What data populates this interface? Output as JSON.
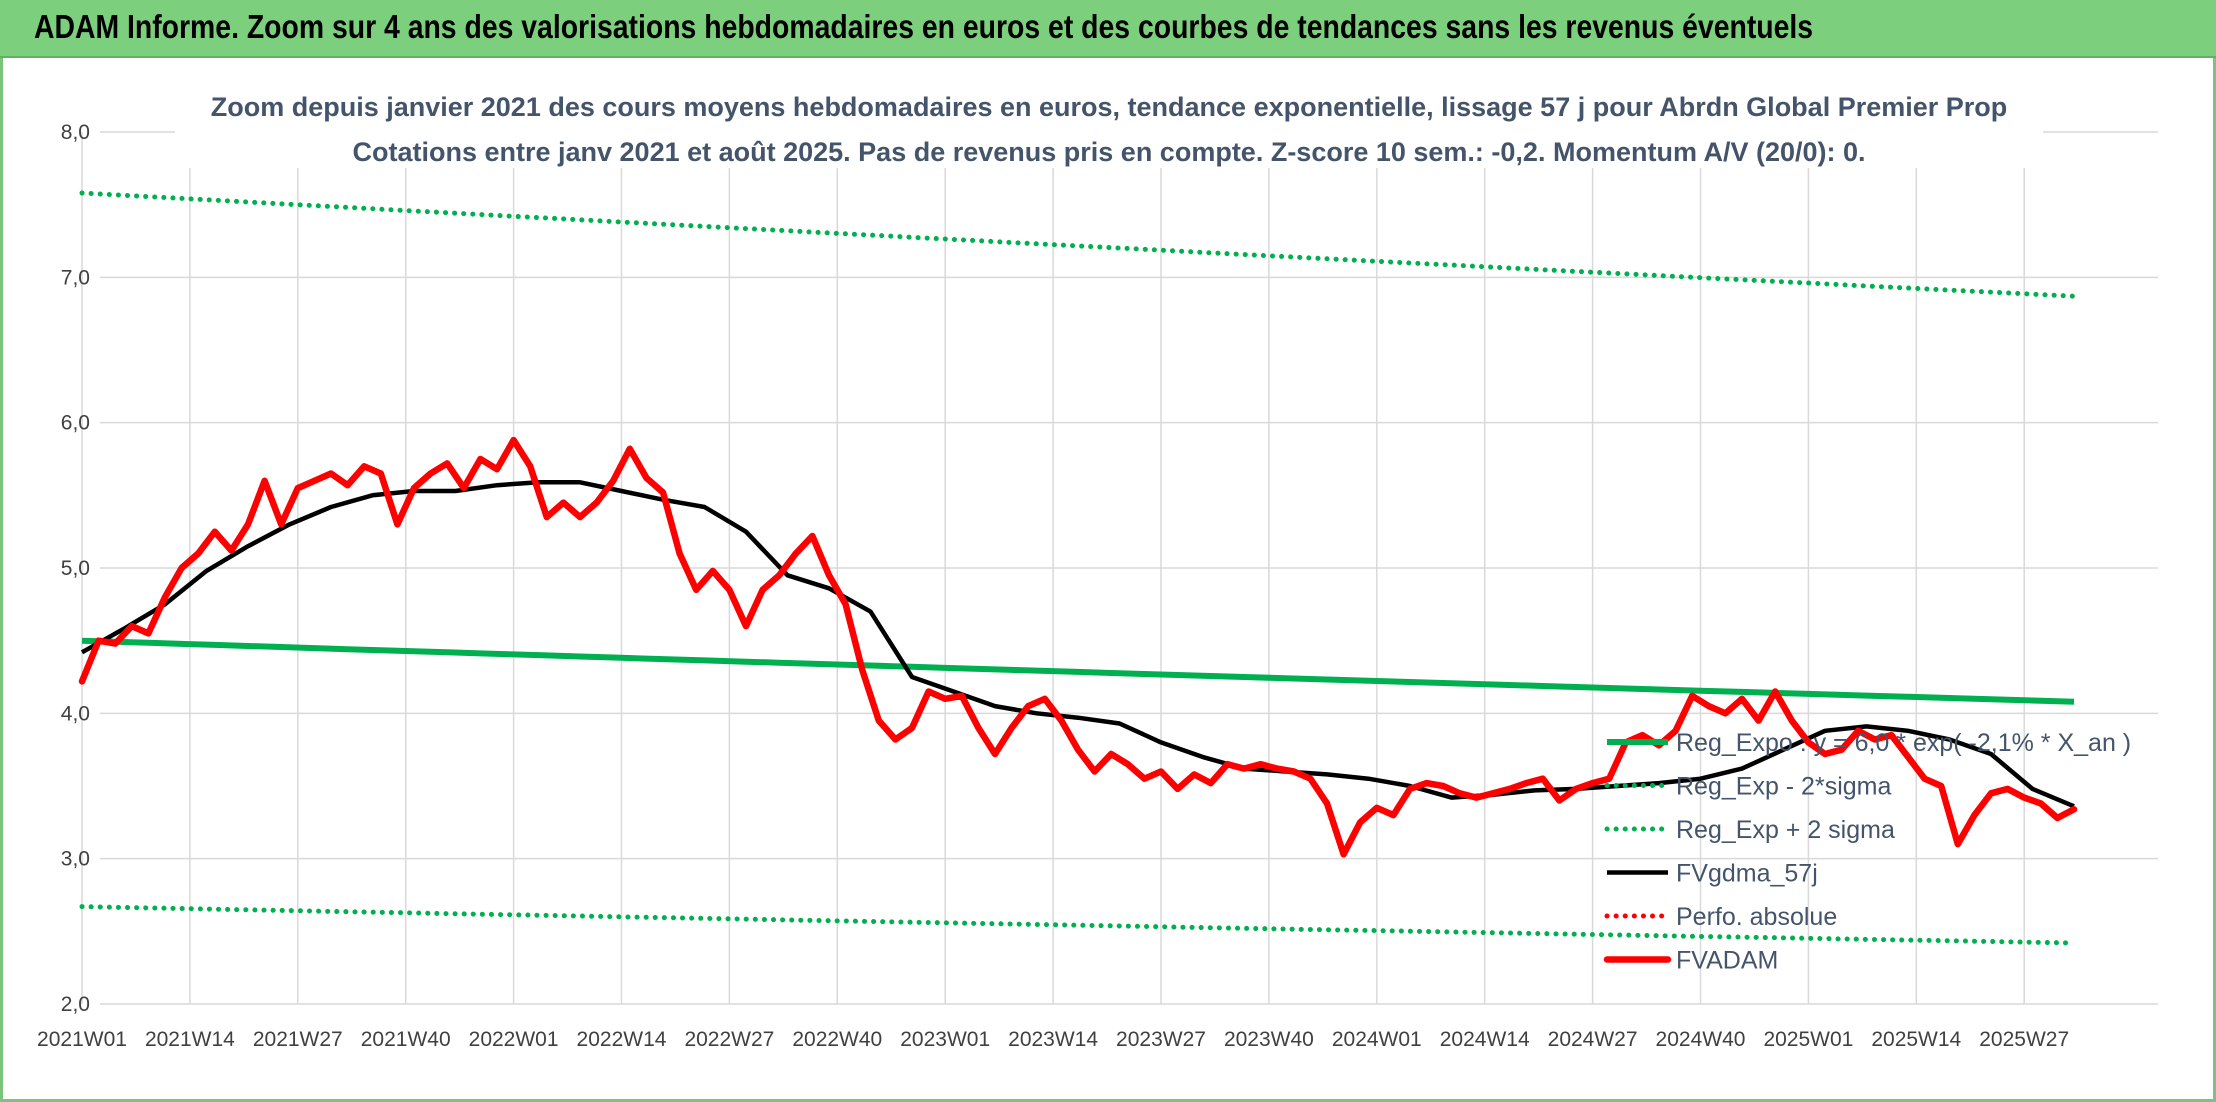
{
  "banner": {
    "title": "ADAM Informe. Zoom sur 4 ans des valorisations hebdomadaires en euros et des courbes de tendances sans les revenus éventuels"
  },
  "chart_data": {
    "type": "line",
    "title": "Zoom depuis janvier 2021 des cours moyens hebdomadaires en euros, tendance exponentielle, lissage 57 j pour Abrdn Global Premier Prop",
    "subtitle": "Cotations entre janv 2021 et août 2025. Pas de revenus pris en compte. Z-score 10 sem.: -0,2. Momentum A/V (20/0): 0.",
    "xlabel": "",
    "ylabel": "",
    "ylim": [
      2.0,
      8.0
    ],
    "y_ticks": [
      "2,0",
      "3,0",
      "4,0",
      "5,0",
      "6,0",
      "7,0",
      "8,0"
    ],
    "x_ticks": [
      "2021W01",
      "2021W14",
      "2021W27",
      "2021W40",
      "2022W01",
      "2022W14",
      "2022W27",
      "2022W40",
      "2023W01",
      "2023W14",
      "2023W27",
      "2023W40",
      "2024W01",
      "2024W14",
      "2024W27",
      "2024W40",
      "2025W01",
      "2025W14",
      "2025W27"
    ],
    "x_range_weeks": [
      0,
      240
    ],
    "grid": true,
    "legend_position": "right",
    "series": [
      {
        "name": "Reg_Expo : y = 6,0 * exp( -2,1% *  X_an )",
        "color": "#00b050",
        "style": "solid",
        "x": [
          0,
          240
        ],
        "values": [
          4.5,
          4.08
        ]
      },
      {
        "name": "Reg_Exp - 2*sigma",
        "color": "#00b050",
        "style": "dotted",
        "x": [
          0,
          240
        ],
        "values": [
          2.67,
          2.42
        ]
      },
      {
        "name": "Reg_Exp + 2 sigma",
        "color": "#00b050",
        "style": "dotted",
        "x": [
          0,
          240
        ],
        "values": [
          7.58,
          6.87
        ]
      },
      {
        "name": "FVgdma_57j",
        "color": "#000000",
        "style": "solid",
        "x": [
          0,
          5,
          10,
          15,
          20,
          25,
          30,
          35,
          40,
          45,
          50,
          55,
          60,
          65,
          70,
          75,
          80,
          85,
          90,
          95,
          100,
          105,
          110,
          115,
          120,
          125,
          130,
          135,
          140,
          145,
          150,
          155,
          160,
          165,
          170,
          175,
          180,
          185,
          190,
          195,
          200,
          205,
          210,
          215,
          220,
          225,
          230,
          235,
          240
        ],
        "values": [
          4.42,
          4.58,
          4.75,
          4.98,
          5.15,
          5.3,
          5.42,
          5.5,
          5.53,
          5.53,
          5.57,
          5.59,
          5.59,
          5.53,
          5.47,
          5.42,
          5.25,
          4.95,
          4.86,
          4.7,
          4.25,
          4.15,
          4.05,
          4.0,
          3.97,
          3.93,
          3.8,
          3.7,
          3.62,
          3.6,
          3.58,
          3.55,
          3.5,
          3.42,
          3.44,
          3.47,
          3.48,
          3.5,
          3.52,
          3.55,
          3.62,
          3.75,
          3.88,
          3.91,
          3.88,
          3.82,
          3.72,
          3.48,
          3.36
        ]
      },
      {
        "name": "Perfo. absolue",
        "color": "#ff0000",
        "style": "dotted",
        "x": [],
        "values": []
      },
      {
        "name": "FVADAM",
        "color": "#ff0000",
        "style": "solid",
        "x": [
          0,
          2,
          4,
          6,
          8,
          10,
          12,
          14,
          16,
          18,
          20,
          22,
          24,
          26,
          28,
          30,
          32,
          34,
          36,
          38,
          40,
          42,
          44,
          46,
          48,
          50,
          52,
          54,
          56,
          58,
          60,
          62,
          64,
          66,
          68,
          70,
          72,
          74,
          76,
          78,
          80,
          82,
          84,
          86,
          88,
          90,
          92,
          94,
          96,
          98,
          100,
          102,
          104,
          106,
          108,
          110,
          112,
          114,
          116,
          118,
          120,
          122,
          124,
          126,
          128,
          130,
          132,
          134,
          136,
          138,
          140,
          142,
          144,
          146,
          148,
          150,
          152,
          154,
          156,
          158,
          160,
          162,
          164,
          166,
          168,
          170,
          172,
          174,
          176,
          178,
          180,
          182,
          184,
          186,
          188,
          190,
          192,
          194,
          196,
          198,
          200,
          202,
          204,
          206,
          208,
          210,
          212,
          214,
          216,
          218,
          220,
          222,
          224,
          226,
          228,
          230,
          232,
          234,
          236,
          238,
          240
        ],
        "values": [
          4.22,
          4.5,
          4.48,
          4.6,
          4.55,
          4.8,
          5.0,
          5.1,
          5.25,
          5.12,
          5.3,
          5.6,
          5.3,
          5.55,
          5.6,
          5.65,
          5.57,
          5.7,
          5.65,
          5.3,
          5.55,
          5.65,
          5.72,
          5.55,
          5.75,
          5.68,
          5.88,
          5.7,
          5.35,
          5.45,
          5.35,
          5.45,
          5.6,
          5.82,
          5.62,
          5.52,
          5.1,
          4.85,
          4.98,
          4.85,
          4.6,
          4.85,
          4.95,
          5.1,
          5.22,
          4.95,
          4.75,
          4.3,
          3.95,
          3.82,
          3.9,
          4.15,
          4.1,
          4.12,
          3.9,
          3.72,
          3.9,
          4.05,
          4.1,
          3.95,
          3.75,
          3.6,
          3.72,
          3.65,
          3.55,
          3.6,
          3.48,
          3.58,
          3.52,
          3.65,
          3.62,
          3.65,
          3.62,
          3.6,
          3.55,
          3.38,
          3.03,
          3.25,
          3.35,
          3.3,
          3.48,
          3.52,
          3.5,
          3.45,
          3.42,
          3.45,
          3.48,
          3.52,
          3.55,
          3.4,
          3.48,
          3.52,
          3.55,
          3.8,
          3.85,
          3.78,
          3.88,
          4.12,
          4.05,
          4.0,
          4.1,
          3.95,
          4.15,
          3.95,
          3.8,
          3.72,
          3.75,
          3.88,
          3.82,
          3.85,
          3.7,
          3.55,
          3.5,
          3.1,
          3.3,
          3.45,
          3.48,
          3.42,
          3.38,
          3.28,
          3.34
        ]
      }
    ]
  }
}
